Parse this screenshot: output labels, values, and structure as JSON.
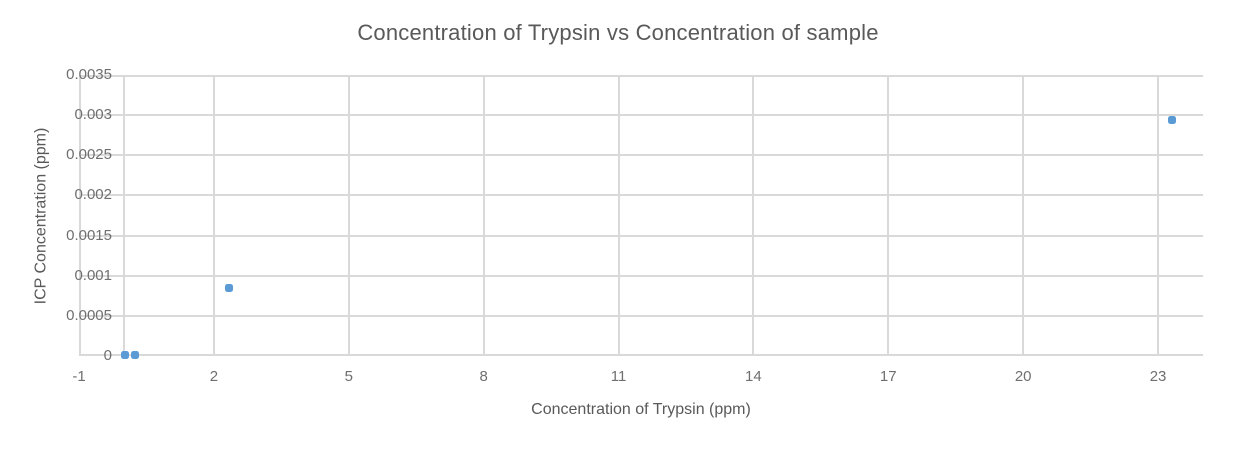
{
  "chart_data": {
    "type": "scatter",
    "title": "Concentration of Trypsin vs Concentration of sample",
    "xlabel": "Concentration of Trypsin (ppm)",
    "ylabel": "ICP Concentration (ppm)",
    "xlim": [
      -1,
      24
    ],
    "ylim": [
      0,
      0.0035
    ],
    "grid": true,
    "legend": "none",
    "value_axis_x": 0,
    "x_ticks": [
      {
        "value": -1,
        "label": "-1"
      },
      {
        "value": 2,
        "label": "2"
      },
      {
        "value": 5,
        "label": "5"
      },
      {
        "value": 8,
        "label": "8"
      },
      {
        "value": 11,
        "label": "11"
      },
      {
        "value": 14,
        "label": "14"
      },
      {
        "value": 17,
        "label": "17"
      },
      {
        "value": 20,
        "label": "20"
      },
      {
        "value": 23,
        "label": "23"
      }
    ],
    "y_ticks": [
      {
        "value": 0,
        "label": "0"
      },
      {
        "value": 0.0005,
        "label": "0.0005"
      },
      {
        "value": 0.001,
        "label": "0.001"
      },
      {
        "value": 0.0015,
        "label": "0.0015"
      },
      {
        "value": 0.002,
        "label": "0.002"
      },
      {
        "value": 0.0025,
        "label": "0.0025"
      },
      {
        "value": 0.003,
        "label": "0.003"
      },
      {
        "value": 0.0035,
        "label": "0.0035"
      }
    ],
    "points": [
      {
        "x": 0.02,
        "y": 1e-05
      },
      {
        "x": 0.25,
        "y": 1e-05
      },
      {
        "x": 2.34,
        "y": 0.00085
      },
      {
        "x": 23.3,
        "y": 0.00294
      }
    ],
    "colors": {
      "marker": "#5B9BD5",
      "gridline": "#D9D9D9",
      "title_text": "#595959",
      "tick_text": "#6f6f6f",
      "background": "#FFFFFF"
    }
  }
}
